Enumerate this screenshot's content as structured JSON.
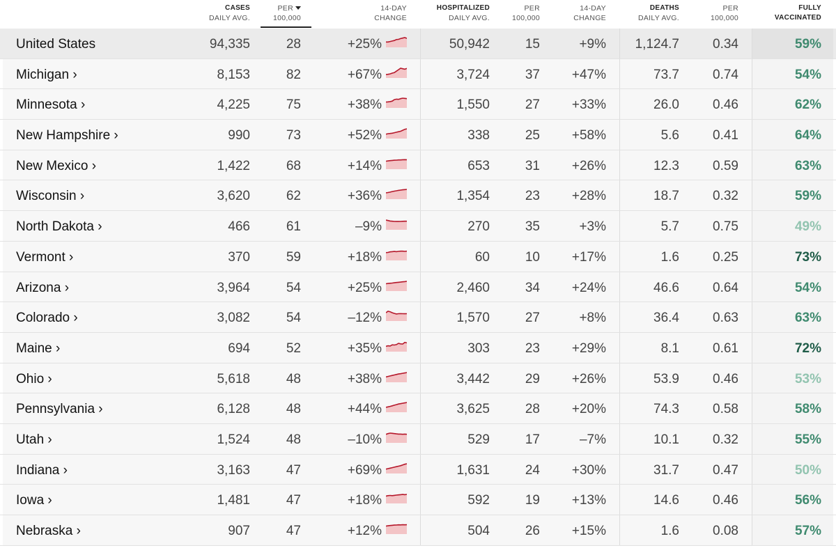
{
  "header": {
    "cases_top": "CASES",
    "cases_bot": "DAILY AVG.",
    "per_top": "PER",
    "per_bot": "100,000",
    "chg_top": "14-DAY",
    "chg_bot": "CHANGE",
    "hosp_top": "HOSPITALIZED",
    "hosp_bot": "DAILY AVG.",
    "hper_top": "PER",
    "hper_bot": "100,000",
    "hchg_top": "14-DAY",
    "hchg_bot": "CHANGE",
    "deaths_top": "DEATHS",
    "deaths_bot": "DAILY AVG.",
    "dper_top": "PER",
    "dper_bot": "100,000",
    "vax_top": "FULLY",
    "vax_bot": "VACCINATED"
  },
  "colors": {
    "spark_line": "#b5172a",
    "spark_fill": "#f3c4c6",
    "vax_scale": [
      "#92c4b0",
      "#3f8a6f",
      "#1f5c48"
    ]
  },
  "rows": [
    {
      "name": "United States",
      "cases": "94,335",
      "per": "28",
      "chg": "+25%",
      "hosp": "50,942",
      "hper": "15",
      "hchg": "+9%",
      "deaths": "1,124.7",
      "dper": "0.34",
      "vax": "59%",
      "vax_value": 59,
      "spark": [
        0.55,
        0.55,
        0.6,
        0.65,
        0.7,
        0.8,
        0.82,
        0.9,
        0.95,
        1.0,
        0.92
      ]
    },
    {
      "name": "Michigan ›",
      "cases": "8,153",
      "per": "82",
      "chg": "+67%",
      "hosp": "3,724",
      "hper": "37",
      "hchg": "+47%",
      "deaths": "73.7",
      "dper": "0.74",
      "vax": "54%",
      "vax_value": 54,
      "spark": [
        0.35,
        0.38,
        0.42,
        0.5,
        0.55,
        0.7,
        0.85,
        1.0,
        0.95,
        0.9,
        0.98
      ]
    },
    {
      "name": "Minnesota ›",
      "cases": "4,225",
      "per": "75",
      "chg": "+38%",
      "hosp": "1,550",
      "hper": "27",
      "hchg": "+33%",
      "deaths": "26.0",
      "dper": "0.46",
      "vax": "62%",
      "vax_value": 62,
      "spark": [
        0.6,
        0.62,
        0.65,
        0.7,
        0.85,
        0.9,
        0.88,
        0.95,
        1.0,
        0.98,
        0.95
      ]
    },
    {
      "name": "New Hampshire ›",
      "cases": "990",
      "per": "73",
      "chg": "+52%",
      "hosp": "338",
      "hper": "25",
      "hchg": "+58%",
      "deaths": "5.6",
      "dper": "0.41",
      "vax": "64%",
      "vax_value": 64,
      "spark": [
        0.45,
        0.5,
        0.52,
        0.55,
        0.6,
        0.65,
        0.7,
        0.75,
        0.85,
        0.95,
        1.0
      ]
    },
    {
      "name": "New Mexico ›",
      "cases": "1,422",
      "per": "68",
      "chg": "+14%",
      "hosp": "653",
      "hper": "31",
      "hchg": "+26%",
      "deaths": "12.3",
      "dper": "0.59",
      "vax": "63%",
      "vax_value": 63,
      "spark": [
        0.82,
        0.85,
        0.88,
        0.9,
        0.92,
        0.93,
        0.95,
        0.95,
        0.97,
        0.98,
        0.97
      ]
    },
    {
      "name": "Wisconsin ›",
      "cases": "3,620",
      "per": "62",
      "chg": "+36%",
      "hosp": "1,354",
      "hper": "23",
      "hchg": "+28%",
      "deaths": "18.7",
      "dper": "0.32",
      "vax": "59%",
      "vax_value": 59,
      "spark": [
        0.65,
        0.68,
        0.72,
        0.78,
        0.82,
        0.86,
        0.9,
        0.93,
        0.96,
        0.98,
        1.0
      ]
    },
    {
      "name": "North Dakota ›",
      "cases": "466",
      "per": "61",
      "chg": "–9%",
      "hosp": "270",
      "hper": "35",
      "hchg": "+3%",
      "deaths": "5.7",
      "dper": "0.75",
      "vax": "49%",
      "vax_value": 49,
      "spark": [
        1.0,
        0.95,
        0.9,
        0.88,
        0.86,
        0.85,
        0.85,
        0.86,
        0.87,
        0.88,
        0.88
      ]
    },
    {
      "name": "Vermont ›",
      "cases": "370",
      "per": "59",
      "chg": "+18%",
      "hosp": "60",
      "hper": "10",
      "hchg": "+17%",
      "deaths": "1.6",
      "dper": "0.25",
      "vax": "73%",
      "vax_value": 73,
      "spark": [
        0.8,
        0.82,
        0.88,
        0.9,
        0.92,
        0.9,
        0.93,
        0.95,
        0.95,
        0.93,
        0.95
      ]
    },
    {
      "name": "Arizona ›",
      "cases": "3,964",
      "per": "54",
      "chg": "+25%",
      "hosp": "2,460",
      "hper": "34",
      "hchg": "+24%",
      "deaths": "46.6",
      "dper": "0.64",
      "vax": "54%",
      "vax_value": 54,
      "spark": [
        0.75,
        0.78,
        0.8,
        0.82,
        0.85,
        0.88,
        0.9,
        0.92,
        0.95,
        0.97,
        1.0
      ]
    },
    {
      "name": "Colorado ›",
      "cases": "3,082",
      "per": "54",
      "chg": "–12%",
      "hosp": "1,570",
      "hper": "27",
      "hchg": "+8%",
      "deaths": "36.4",
      "dper": "0.63",
      "vax": "63%",
      "vax_value": 63,
      "spark": [
        0.85,
        1.0,
        0.95,
        0.85,
        0.78,
        0.72,
        0.75,
        0.76,
        0.75,
        0.74,
        0.75
      ]
    },
    {
      "name": "Maine ›",
      "cases": "694",
      "per": "52",
      "chg": "+35%",
      "hosp": "303",
      "hper": "23",
      "hchg": "+29%",
      "deaths": "8.1",
      "dper": "0.61",
      "vax": "72%",
      "vax_value": 72,
      "spark": [
        0.55,
        0.6,
        0.58,
        0.7,
        0.68,
        0.72,
        0.85,
        0.8,
        0.78,
        0.95,
        0.9
      ]
    },
    {
      "name": "Ohio ›",
      "cases": "5,618",
      "per": "48",
      "chg": "+38%",
      "hosp": "3,442",
      "hper": "29",
      "hchg": "+26%",
      "deaths": "53.9",
      "dper": "0.46",
      "vax": "53%",
      "vax_value": 53,
      "spark": [
        0.55,
        0.6,
        0.65,
        0.7,
        0.75,
        0.8,
        0.85,
        0.88,
        0.92,
        0.96,
        1.0
      ]
    },
    {
      "name": "Pennsylvania ›",
      "cases": "6,128",
      "per": "48",
      "chg": "+44%",
      "hosp": "3,625",
      "hper": "28",
      "hchg": "+20%",
      "deaths": "74.3",
      "dper": "0.58",
      "vax": "58%",
      "vax_value": 58,
      "spark": [
        0.5,
        0.55,
        0.6,
        0.66,
        0.72,
        0.78,
        0.84,
        0.88,
        0.92,
        0.96,
        1.0
      ]
    },
    {
      "name": "Utah ›",
      "cases": "1,524",
      "per": "48",
      "chg": "–10%",
      "hosp": "529",
      "hper": "17",
      "hchg": "–7%",
      "deaths": "10.1",
      "dper": "0.32",
      "vax": "55%",
      "vax_value": 55,
      "spark": [
        0.88,
        0.95,
        1.0,
        0.98,
        0.95,
        0.92,
        0.9,
        0.9,
        0.88,
        0.9,
        0.88
      ]
    },
    {
      "name": "Indiana ›",
      "cases": "3,163",
      "per": "47",
      "chg": "+69%",
      "hosp": "1,631",
      "hper": "24",
      "hchg": "+30%",
      "deaths": "31.7",
      "dper": "0.47",
      "vax": "50%",
      "vax_value": 50,
      "spark": [
        0.45,
        0.5,
        0.55,
        0.6,
        0.65,
        0.7,
        0.75,
        0.8,
        0.88,
        0.95,
        1.0
      ]
    },
    {
      "name": "Iowa ›",
      "cases": "1,481",
      "per": "47",
      "chg": "+18%",
      "hosp": "592",
      "hper": "19",
      "hchg": "+13%",
      "deaths": "14.6",
      "dper": "0.46",
      "vax": "56%",
      "vax_value": 56,
      "spark": [
        0.75,
        0.8,
        0.82,
        0.8,
        0.83,
        0.86,
        0.88,
        0.9,
        0.92,
        0.9,
        0.93
      ]
    },
    {
      "name": "Nebraska ›",
      "cases": "907",
      "per": "47",
      "chg": "+12%",
      "hosp": "504",
      "hper": "26",
      "hchg": "+15%",
      "deaths": "1.6",
      "dper": "0.08",
      "vax": "57%",
      "vax_value": 57,
      "spark": [
        0.82,
        0.85,
        0.88,
        0.9,
        0.92,
        0.93,
        0.95,
        0.94,
        0.96,
        0.95,
        0.96
      ]
    }
  ]
}
